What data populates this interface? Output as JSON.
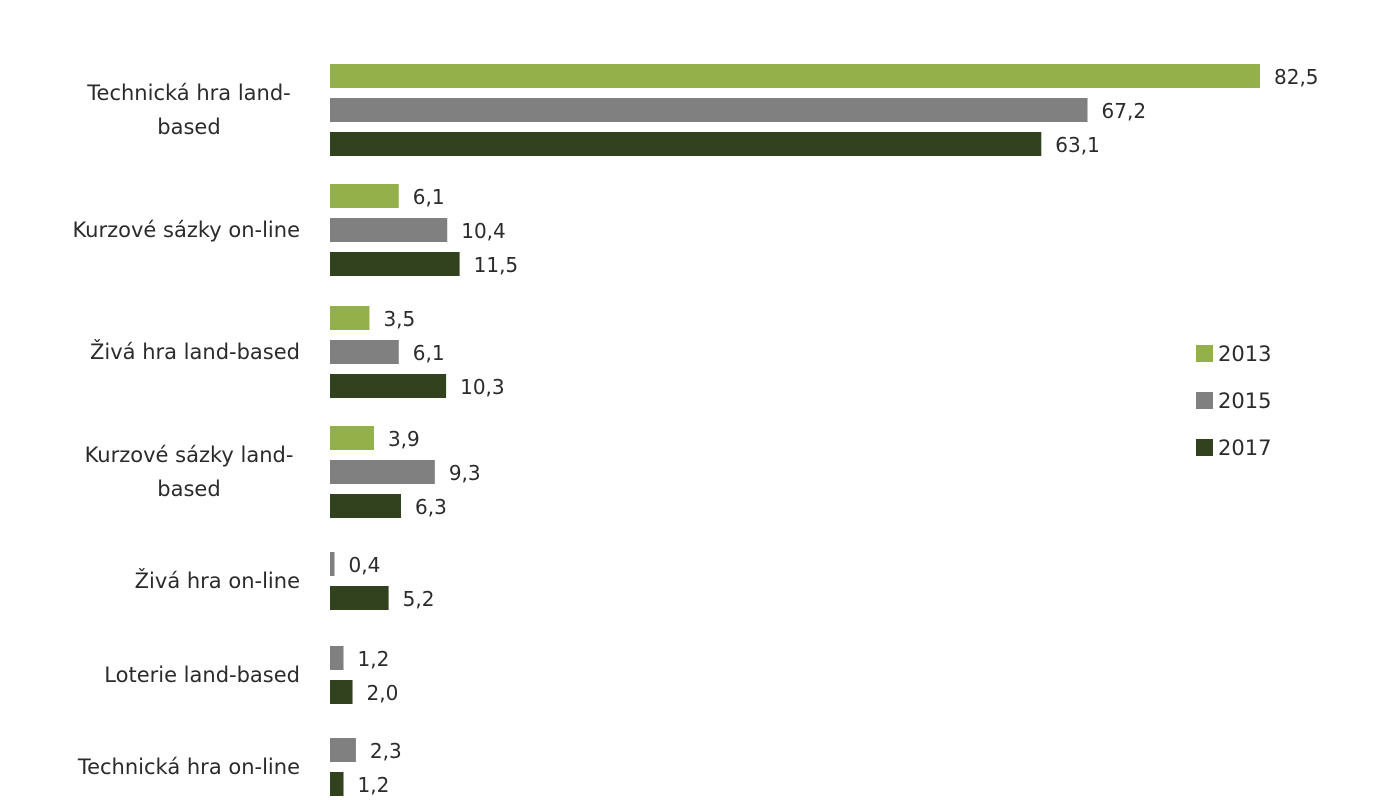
{
  "chart_data": {
    "type": "bar",
    "orientation": "horizontal",
    "title": "",
    "xlabel": "",
    "ylabel": "",
    "grid": false,
    "legend_position": "right",
    "categories": [
      "Technická hra land-based",
      "Kurzové sázky on-line",
      "Živá hra land-based",
      "Kurzové sázky land-based",
      "Živá hra on-line",
      "Loterie land-based",
      "Technická hra on-line"
    ],
    "category_display_lines": [
      [
        "Technická hra land-",
        "based"
      ],
      [
        "Kurzové sázky on-line"
      ],
      [
        "Živá hra land-based"
      ],
      [
        "Kurzové sázky land-",
        "based"
      ],
      [
        "Živá hra on-line"
      ],
      [
        "Loterie land-based"
      ],
      [
        "Technická hra on-line"
      ]
    ],
    "series": [
      {
        "name": "2013",
        "color": "#93b04a",
        "values": [
          82.5,
          6.1,
          3.5,
          3.9,
          null,
          null,
          null
        ],
        "labels": [
          "82,5",
          "6,1",
          "3,5",
          "3,9",
          null,
          null,
          null
        ]
      },
      {
        "name": "2015",
        "color": "#808080",
        "values": [
          67.2,
          10.4,
          6.1,
          9.3,
          0.4,
          1.2,
          2.3
        ],
        "labels": [
          "67,2",
          "10,4",
          "6,1",
          "9,3",
          "0,4",
          "1,2",
          "2,3"
        ]
      },
      {
        "name": "2017",
        "color": "#32421e",
        "values": [
          63.1,
          11.5,
          10.3,
          6.3,
          5.2,
          2.0,
          1.2
        ],
        "labels": [
          "63,1",
          "11,5",
          "10,3",
          "6,3",
          "5,2",
          "2,0",
          "1,2"
        ]
      }
    ],
    "xlim": [
      0,
      82.5
    ]
  }
}
